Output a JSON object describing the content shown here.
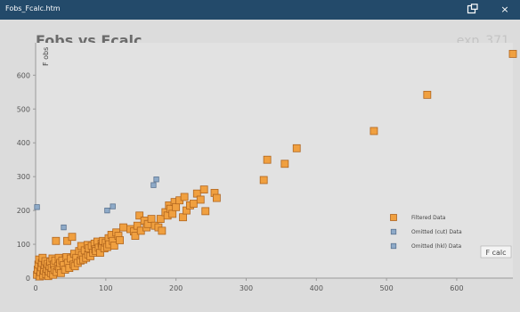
{
  "window": {
    "title": "Fobs_Fcalc.htm",
    "close_glyph": "×"
  },
  "header": {
    "exp_label": "exp_371"
  },
  "chart_data": {
    "type": "scatter",
    "title": "Fobs vs Fcalc",
    "xlabel": "F calc",
    "ylabel": "F obs",
    "xlim": [
      0,
      680
    ],
    "ylim": [
      0,
      680
    ],
    "x_ticks": [
      0,
      100,
      200,
      300,
      400,
      500,
      600
    ],
    "y_ticks": [
      0,
      100,
      200,
      300,
      400,
      500,
      600
    ],
    "grid": false,
    "legend_position": "bottom-right",
    "series": [
      {
        "name": "Filtered Data",
        "color": "#f0a040",
        "stroke": "#b0651e",
        "marker": "square",
        "points": [
          [
            2,
            10
          ],
          [
            3,
            25
          ],
          [
            4,
            40
          ],
          [
            5,
            55
          ],
          [
            6,
            5
          ],
          [
            7,
            18
          ],
          [
            8,
            32
          ],
          [
            9,
            45
          ],
          [
            10,
            60
          ],
          [
            11,
            8
          ],
          [
            12,
            22
          ],
          [
            13,
            38
          ],
          [
            14,
            50
          ],
          [
            15,
            12
          ],
          [
            16,
            28
          ],
          [
            17,
            42
          ],
          [
            18,
            6
          ],
          [
            19,
            20
          ],
          [
            20,
            35
          ],
          [
            21,
            48
          ],
          [
            22,
            15
          ],
          [
            23,
            30
          ],
          [
            24,
            58
          ],
          [
            25,
            10
          ],
          [
            26,
            40
          ],
          [
            27,
            24
          ],
          [
            28,
            52
          ],
          [
            29,
            110
          ],
          [
            30,
            18
          ],
          [
            32,
            35
          ],
          [
            33,
            60
          ],
          [
            34,
            28
          ],
          [
            35,
            45
          ],
          [
            36,
            15
          ],
          [
            38,
            52
          ],
          [
            40,
            38
          ],
          [
            42,
            25
          ],
          [
            44,
            62
          ],
          [
            45,
            110
          ],
          [
            46,
            45
          ],
          [
            48,
            30
          ],
          [
            50,
            58
          ],
          [
            52,
            122
          ],
          [
            54,
            40
          ],
          [
            55,
            72
          ],
          [
            56,
            35
          ],
          [
            58,
            60
          ],
          [
            60,
            45
          ],
          [
            62,
            80
          ],
          [
            64,
            52
          ],
          [
            65,
            95
          ],
          [
            66,
            68
          ],
          [
            68,
            55
          ],
          [
            70,
            82
          ],
          [
            72,
            60
          ],
          [
            74,
            98
          ],
          [
            75,
            70
          ],
          [
            76,
            88
          ],
          [
            78,
            65
          ],
          [
            80,
            95
          ],
          [
            82,
            75
          ],
          [
            84,
            102
          ],
          [
            85,
            85
          ],
          [
            86,
            80
          ],
          [
            88,
            108
          ],
          [
            90,
            90
          ],
          [
            92,
            75
          ],
          [
            94,
            102
          ],
          [
            95,
            95
          ],
          [
            96,
            110
          ],
          [
            98,
            88
          ],
          [
            100,
            105
          ],
          [
            102,
            92
          ],
          [
            104,
            118
          ],
          [
            105,
            100
          ],
          [
            108,
            128
          ],
          [
            110,
            110
          ],
          [
            112,
            96
          ],
          [
            115,
            135
          ],
          [
            118,
            125
          ],
          [
            120,
            112
          ],
          [
            125,
            150
          ],
          [
            135,
            145
          ],
          [
            140,
            138
          ],
          [
            142,
            125
          ],
          [
            145,
            155
          ],
          [
            148,
            185
          ],
          [
            150,
            140
          ],
          [
            155,
            170
          ],
          [
            158,
            150
          ],
          [
            160,
            160
          ],
          [
            165,
            175
          ],
          [
            170,
            155
          ],
          [
            175,
            150
          ],
          [
            178,
            175
          ],
          [
            180,
            140
          ],
          [
            185,
            195
          ],
          [
            188,
            185
          ],
          [
            190,
            215
          ],
          [
            192,
            205
          ],
          [
            195,
            190
          ],
          [
            198,
            225
          ],
          [
            200,
            210
          ],
          [
            205,
            230
          ],
          [
            210,
            180
          ],
          [
            212,
            240
          ],
          [
            215,
            200
          ],
          [
            220,
            215
          ],
          [
            225,
            220
          ],
          [
            230,
            250
          ],
          [
            235,
            232
          ],
          [
            240,
            262
          ],
          [
            242,
            198
          ],
          [
            255,
            252
          ],
          [
            258,
            237
          ],
          [
            325,
            290
          ],
          [
            330,
            350
          ],
          [
            355,
            338
          ],
          [
            372,
            384
          ],
          [
            482,
            435
          ],
          [
            558,
            542
          ],
          [
            680,
            663
          ]
        ]
      },
      {
        "name": "Omitted (cut) Data",
        "color": "#8eaac8",
        "stroke": "#5a7390",
        "marker": "square",
        "points": [
          [
            40,
            150
          ],
          [
            102,
            200
          ],
          [
            110,
            212
          ],
          [
            168,
            275
          ],
          [
            172,
            292
          ]
        ]
      },
      {
        "name": "Omitted (hkl) Data",
        "color": "#8eaac8",
        "stroke": "#5a7390",
        "marker": "square",
        "points": [
          [
            2,
            210
          ]
        ]
      }
    ]
  }
}
